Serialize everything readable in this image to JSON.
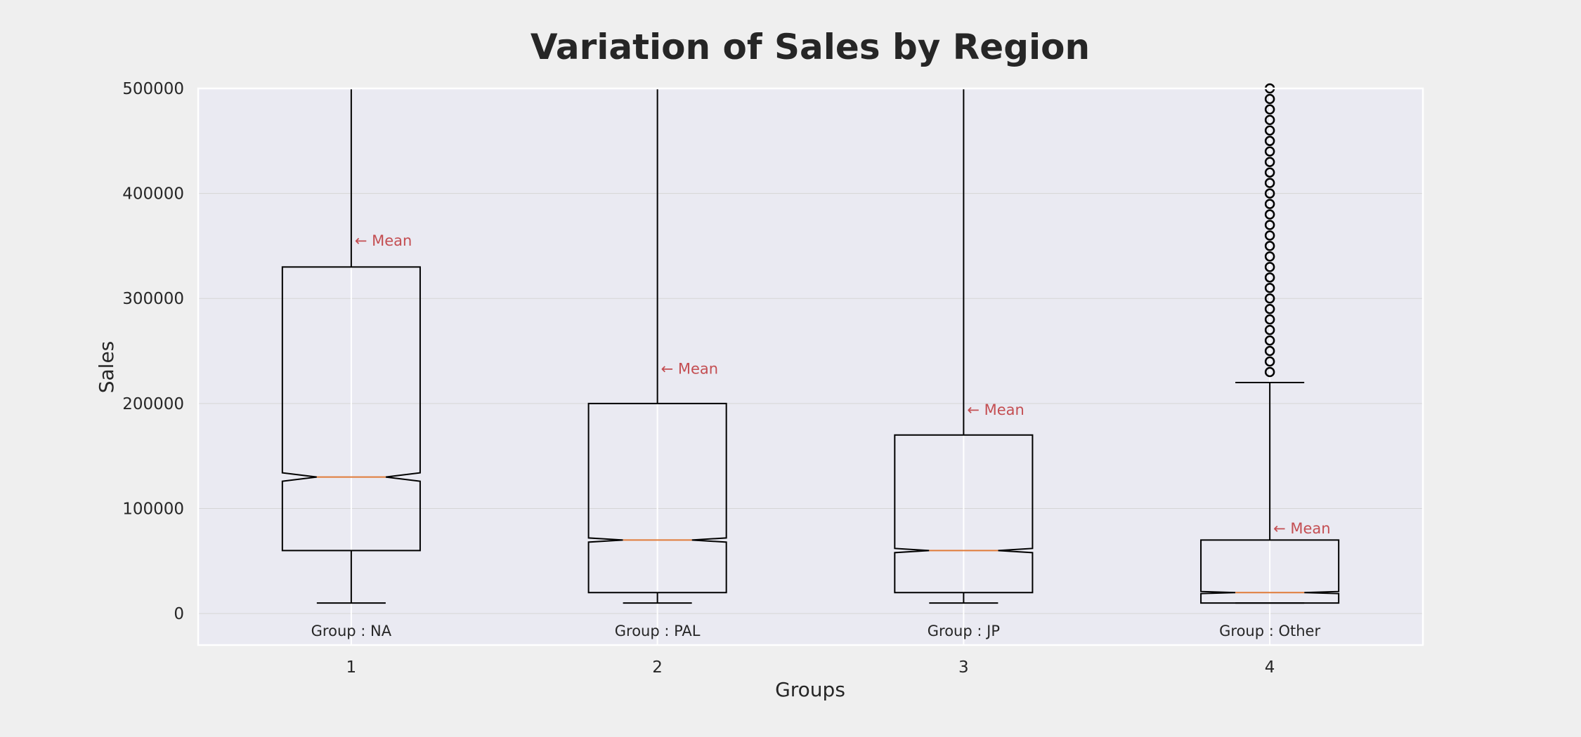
{
  "chart_data": {
    "type": "boxplot",
    "title": "Variation of Sales by Region",
    "xlabel": "Groups",
    "ylabel": "Sales",
    "ylim": [
      -30000,
      500000
    ],
    "yticks": [
      0,
      100000,
      200000,
      300000,
      400000,
      500000
    ],
    "xticks": [
      "1",
      "2",
      "3",
      "4"
    ],
    "grid": true,
    "notched": true,
    "annotation_text": "← Mean",
    "colors": {
      "plot_bg": "#eaeaf2",
      "figure_bg": "#efefef",
      "box": "#000000",
      "median": "#e07b39",
      "annotation": "#c44e52",
      "grid": "#d5d5d5"
    },
    "groups": [
      {
        "label": "Group : NA",
        "whisker_low": 10000,
        "q1": 60000,
        "median": 130000,
        "q3": 330000,
        "whisker_high": 500000,
        "notch_low": 126000,
        "notch_high": 134000,
        "mean": 355000,
        "outliers": []
      },
      {
        "label": "Group : PAL",
        "whisker_low": 10000,
        "q1": 20000,
        "median": 70000,
        "q3": 200000,
        "whisker_high": 500000,
        "notch_low": 68000,
        "notch_high": 72000,
        "mean": 233000,
        "outliers": []
      },
      {
        "label": "Group : JP",
        "whisker_low": 10000,
        "q1": 20000,
        "median": 60000,
        "q3": 170000,
        "whisker_high": 500000,
        "notch_low": 58000,
        "notch_high": 62000,
        "mean": 194000,
        "outliers": []
      },
      {
        "label": "Group : Other",
        "whisker_low": 10000,
        "q1": 10000,
        "median": 20000,
        "q3": 70000,
        "whisker_high": 220000,
        "notch_low": 19000,
        "notch_high": 21000,
        "mean": 81000,
        "outliers": [
          230000,
          240000,
          250000,
          260000,
          270000,
          280000,
          290000,
          300000,
          310000,
          320000,
          330000,
          340000,
          350000,
          360000,
          370000,
          380000,
          390000,
          400000,
          410000,
          420000,
          430000,
          440000,
          450000,
          460000,
          470000,
          480000,
          490000,
          500000
        ]
      }
    ]
  }
}
